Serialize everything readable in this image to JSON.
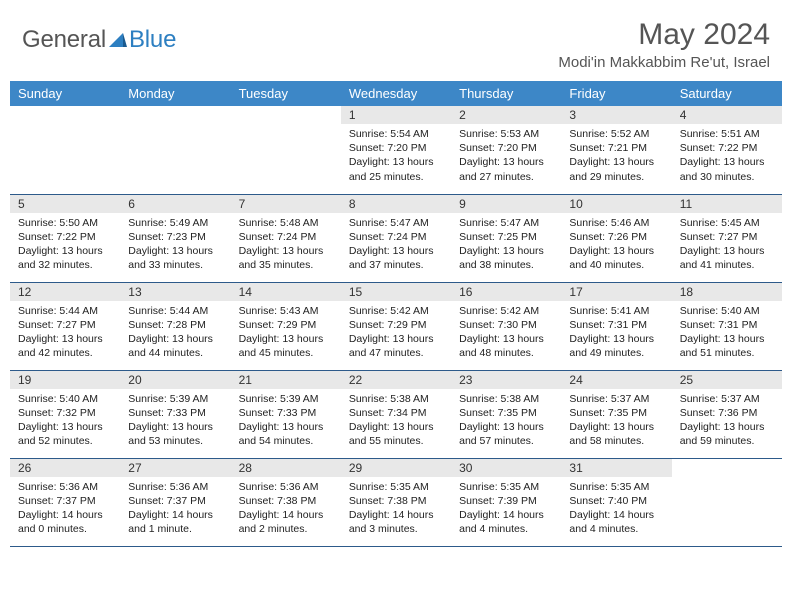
{
  "brand": {
    "part1": "General",
    "part2": "Blue"
  },
  "title": "May 2024",
  "location": "Modi'in Makkabbim Re'ut, Israel",
  "colors": {
    "header_bg": "#3d87c7",
    "header_text": "#ffffff",
    "daynum_bg": "#e8e8e8",
    "row_border": "#2d5a8a",
    "logo_blue": "#2d7fc1",
    "text_gray": "#555555"
  },
  "weekdays": [
    "Sunday",
    "Monday",
    "Tuesday",
    "Wednesday",
    "Thursday",
    "Friday",
    "Saturday"
  ],
  "weeks": [
    [
      null,
      null,
      null,
      {
        "d": "1",
        "sr": "5:54 AM",
        "ss": "7:20 PM",
        "dl": "13 hours and 25 minutes."
      },
      {
        "d": "2",
        "sr": "5:53 AM",
        "ss": "7:20 PM",
        "dl": "13 hours and 27 minutes."
      },
      {
        "d": "3",
        "sr": "5:52 AM",
        "ss": "7:21 PM",
        "dl": "13 hours and 29 minutes."
      },
      {
        "d": "4",
        "sr": "5:51 AM",
        "ss": "7:22 PM",
        "dl": "13 hours and 30 minutes."
      }
    ],
    [
      {
        "d": "5",
        "sr": "5:50 AM",
        "ss": "7:22 PM",
        "dl": "13 hours and 32 minutes."
      },
      {
        "d": "6",
        "sr": "5:49 AM",
        "ss": "7:23 PM",
        "dl": "13 hours and 33 minutes."
      },
      {
        "d": "7",
        "sr": "5:48 AM",
        "ss": "7:24 PM",
        "dl": "13 hours and 35 minutes."
      },
      {
        "d": "8",
        "sr": "5:47 AM",
        "ss": "7:24 PM",
        "dl": "13 hours and 37 minutes."
      },
      {
        "d": "9",
        "sr": "5:47 AM",
        "ss": "7:25 PM",
        "dl": "13 hours and 38 minutes."
      },
      {
        "d": "10",
        "sr": "5:46 AM",
        "ss": "7:26 PM",
        "dl": "13 hours and 40 minutes."
      },
      {
        "d": "11",
        "sr": "5:45 AM",
        "ss": "7:27 PM",
        "dl": "13 hours and 41 minutes."
      }
    ],
    [
      {
        "d": "12",
        "sr": "5:44 AM",
        "ss": "7:27 PM",
        "dl": "13 hours and 42 minutes."
      },
      {
        "d": "13",
        "sr": "5:44 AM",
        "ss": "7:28 PM",
        "dl": "13 hours and 44 minutes."
      },
      {
        "d": "14",
        "sr": "5:43 AM",
        "ss": "7:29 PM",
        "dl": "13 hours and 45 minutes."
      },
      {
        "d": "15",
        "sr": "5:42 AM",
        "ss": "7:29 PM",
        "dl": "13 hours and 47 minutes."
      },
      {
        "d": "16",
        "sr": "5:42 AM",
        "ss": "7:30 PM",
        "dl": "13 hours and 48 minutes."
      },
      {
        "d": "17",
        "sr": "5:41 AM",
        "ss": "7:31 PM",
        "dl": "13 hours and 49 minutes."
      },
      {
        "d": "18",
        "sr": "5:40 AM",
        "ss": "7:31 PM",
        "dl": "13 hours and 51 minutes."
      }
    ],
    [
      {
        "d": "19",
        "sr": "5:40 AM",
        "ss": "7:32 PM",
        "dl": "13 hours and 52 minutes."
      },
      {
        "d": "20",
        "sr": "5:39 AM",
        "ss": "7:33 PM",
        "dl": "13 hours and 53 minutes."
      },
      {
        "d": "21",
        "sr": "5:39 AM",
        "ss": "7:33 PM",
        "dl": "13 hours and 54 minutes."
      },
      {
        "d": "22",
        "sr": "5:38 AM",
        "ss": "7:34 PM",
        "dl": "13 hours and 55 minutes."
      },
      {
        "d": "23",
        "sr": "5:38 AM",
        "ss": "7:35 PM",
        "dl": "13 hours and 57 minutes."
      },
      {
        "d": "24",
        "sr": "5:37 AM",
        "ss": "7:35 PM",
        "dl": "13 hours and 58 minutes."
      },
      {
        "d": "25",
        "sr": "5:37 AM",
        "ss": "7:36 PM",
        "dl": "13 hours and 59 minutes."
      }
    ],
    [
      {
        "d": "26",
        "sr": "5:36 AM",
        "ss": "7:37 PM",
        "dl": "14 hours and 0 minutes."
      },
      {
        "d": "27",
        "sr": "5:36 AM",
        "ss": "7:37 PM",
        "dl": "14 hours and 1 minute."
      },
      {
        "d": "28",
        "sr": "5:36 AM",
        "ss": "7:38 PM",
        "dl": "14 hours and 2 minutes."
      },
      {
        "d": "29",
        "sr": "5:35 AM",
        "ss": "7:38 PM",
        "dl": "14 hours and 3 minutes."
      },
      {
        "d": "30",
        "sr": "5:35 AM",
        "ss": "7:39 PM",
        "dl": "14 hours and 4 minutes."
      },
      {
        "d": "31",
        "sr": "5:35 AM",
        "ss": "7:40 PM",
        "dl": "14 hours and 4 minutes."
      },
      null
    ]
  ],
  "labels": {
    "sunrise": "Sunrise:",
    "sunset": "Sunset:",
    "daylight": "Daylight:"
  }
}
